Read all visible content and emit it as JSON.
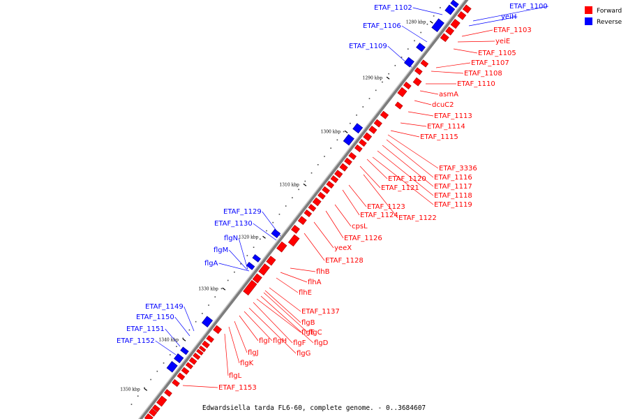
{
  "caption": "Edwardsiella tarda FL6-60, complete genome. - 0..3684607",
  "legend": [
    {
      "label": "Forward",
      "color": "#ff0000"
    },
    {
      "label": "Reverse",
      "color": "#0000ff"
    }
  ],
  "ticks": [
    "1280 kbp",
    "1290 kbp",
    "1300 kbp",
    "1310 kbp",
    "1320 kbp",
    "1330 kbp",
    "1340 kbp",
    "1350 kbp"
  ],
  "forward_labels": [
    "ETAF_1103",
    "yeiE",
    "ETAF_1105",
    "ETAF_1107",
    "ETAF_1108",
    "ETAF_1110",
    "asmA",
    "dcuC2",
    "ETAF_1113",
    "ETAF_1114",
    "ETAF_1115",
    "ETAF_3336",
    "ETAF_1116",
    "ETAF_1117",
    "ETAF_1118",
    "ETAF_1119",
    "ETAF_1120",
    "ETAF_1121",
    "ETAF_1122",
    "ETAF_1123",
    "ETAF_1124",
    "cpsL",
    "ETAF_1126",
    "yeeX",
    "ETAF_1128",
    "flhB",
    "flhA",
    "flhE",
    "ETAF_1137",
    "flgB",
    "flgC",
    "flgD",
    "flgE",
    "flgF",
    "flgG",
    "flgH",
    "flgI",
    "flgJ",
    "flgK",
    "flgL",
    "ETAF_1153"
  ],
  "reverse_labels": [
    "ETAF_1100",
    "yeiH",
    "ETAF_1102",
    "ETAF_1106",
    "ETAF_1109",
    "ETAF_1129",
    "ETAF_1130",
    "flgN",
    "flgM",
    "flgA",
    "ETAF_1149",
    "ETAF_1150",
    "ETAF_1151",
    "ETAF_1152"
  ],
  "colors": {
    "forward": "#ff0000",
    "reverse": "#0000ff",
    "backbone": "#777777"
  }
}
